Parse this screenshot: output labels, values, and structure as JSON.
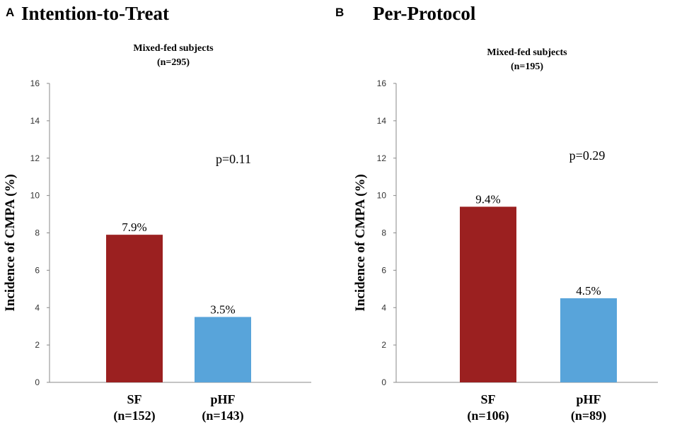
{
  "chart_data": [
    {
      "type": "bar",
      "panel_letter": "A",
      "title": "Intention-to-Treat",
      "subtitle_line1": "Mixed-fed subjects",
      "subtitle_line2": "(n=295)",
      "ylabel": "Incidence of CMPA (%)",
      "xlabel": "",
      "ylim": [
        0,
        16
      ],
      "yticks": [
        0,
        2,
        4,
        6,
        8,
        10,
        12,
        14,
        16
      ],
      "categories": [
        "SF",
        "pHF"
      ],
      "category_n": [
        "(n=152)",
        "(n=143)"
      ],
      "values": [
        7.9,
        3.5
      ],
      "data_labels": [
        "7.9%",
        "3.5%"
      ],
      "bar_colors": [
        "#9b2020",
        "#58a4da"
      ],
      "annotation": "p=0.11",
      "grid": false
    },
    {
      "type": "bar",
      "panel_letter": "B",
      "title": "Per-Protocol",
      "subtitle_line1": "Mixed-fed subjects",
      "subtitle_line2": "(n=195)",
      "ylabel": "Incidence of CMPA (%)",
      "xlabel": "",
      "ylim": [
        0,
        16
      ],
      "yticks": [
        0,
        2,
        4,
        6,
        8,
        10,
        12,
        14,
        16
      ],
      "categories": [
        "SF",
        "pHF"
      ],
      "category_n": [
        "(n=106)",
        "(n=89)"
      ],
      "values": [
        9.4,
        4.5
      ],
      "data_labels": [
        "9.4%",
        "4.5%"
      ],
      "bar_colors": [
        "#9b2020",
        "#58a4da"
      ],
      "annotation": "p=0.29",
      "grid": false
    }
  ]
}
